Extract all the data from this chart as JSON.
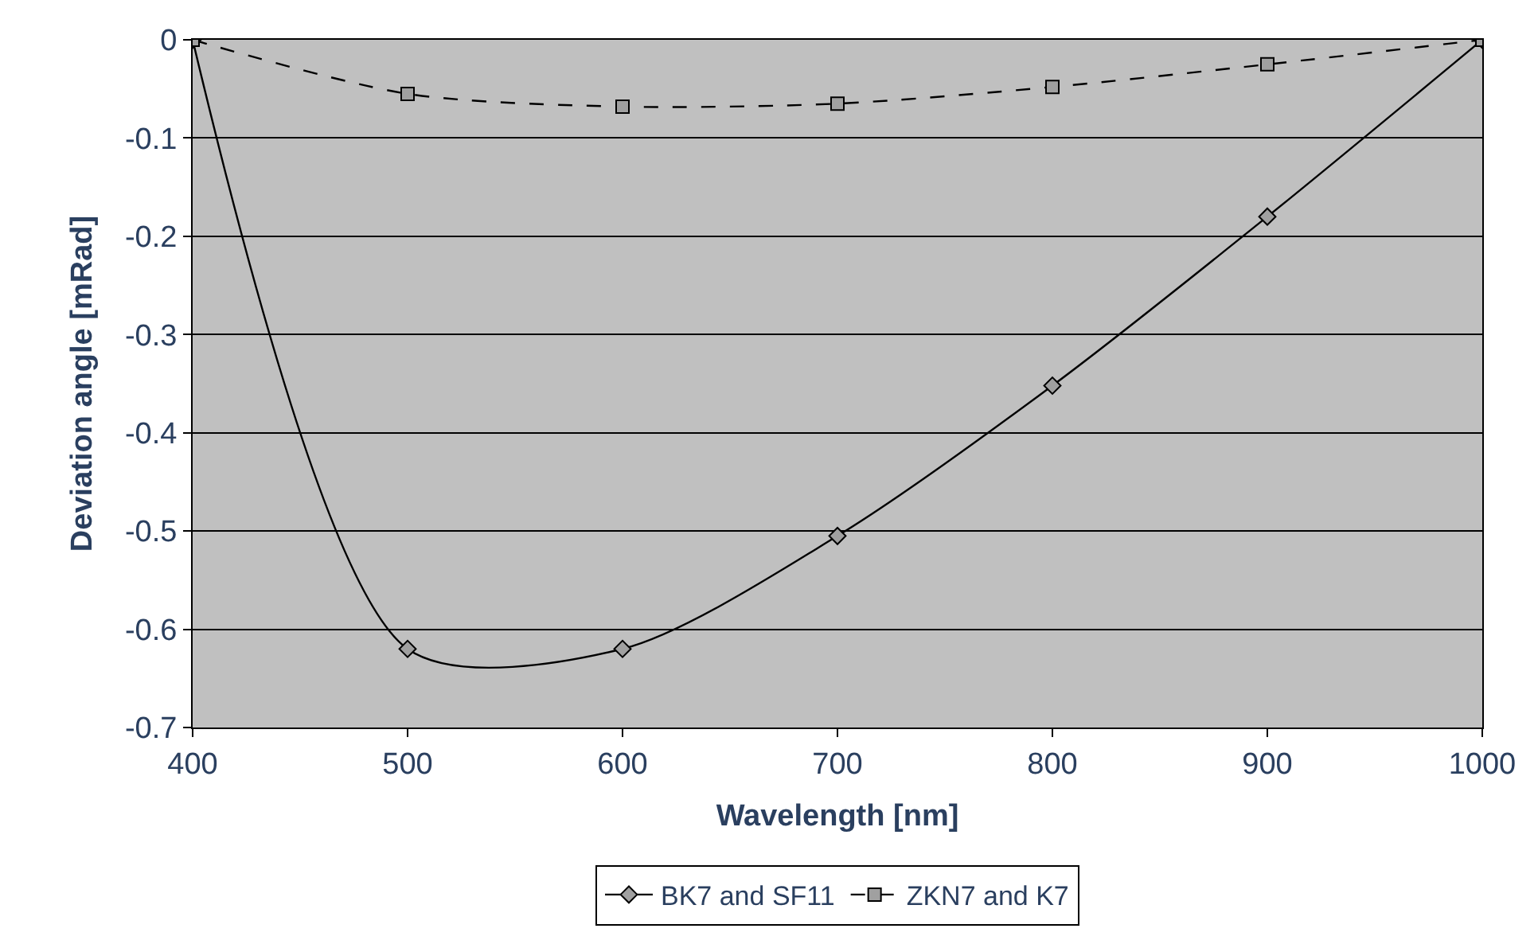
{
  "chart_data": {
    "type": "line",
    "xlabel": "Wavelength [nm]",
    "ylabel": "Deviation angle [mRad]",
    "x": [
      400,
      500,
      600,
      700,
      800,
      900,
      1000
    ],
    "series": [
      {
        "name": "BK7 and SF11",
        "color": "#000000",
        "marker": "diamond",
        "line_style": "solid",
        "values": [
          0,
          -0.62,
          -0.62,
          -0.505,
          -0.352,
          -0.18,
          0
        ]
      },
      {
        "name": "ZKN7 and K7",
        "color": "#000000",
        "marker": "square",
        "line_style": "dashed",
        "values": [
          0,
          -0.055,
          -0.068,
          -0.065,
          -0.048,
          -0.025,
          0
        ]
      }
    ],
    "xlim": [
      400,
      1000
    ],
    "xticks": [
      400,
      500,
      600,
      700,
      800,
      900,
      1000
    ],
    "ylim": [
      -0.7,
      0
    ],
    "yticks": [
      -0.7,
      -0.6,
      -0.5,
      -0.4,
      -0.3,
      -0.2,
      -0.1,
      0
    ],
    "grid": "y",
    "legend": "bottom"
  }
}
